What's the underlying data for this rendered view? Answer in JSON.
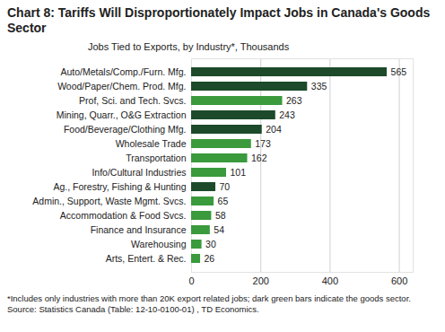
{
  "chart_data": {
    "type": "bar",
    "orientation": "horizontal",
    "title": "Chart 8: Tariffs Will Disproportionately Impact Jobs in Canada's Goods Sector",
    "subtitle": "Jobs Tied to Exports, by Industry*, Thousands",
    "footnote": "*Includes only industries with more than 20K export related jobs; dark green bars indicate the goods sector. Source: Statistics Canada (Table: 12-10-0100-01) , TD Economics.",
    "categories": [
      "Auto/Metals/Comp./Furn. Mfg.",
      "Wood/Paper/Chem. Prod. Mfg.",
      "Prof, Sci. and Tech. Svcs.",
      "Mining, Quarr., O&G Extraction",
      "Food/Beverage/Clothing Mfg.",
      "Wholesale Trade",
      "Transportation",
      "Info/Cultural Industries",
      "Ag., Forestry, Fishing & Hunting",
      "Admin., Support, Waste Mgmt. Svcs.",
      "Accommodation & Food Svcs.",
      "Finance and Insurance",
      "Warehousing",
      "Arts, Entert. & Rec."
    ],
    "values": [
      565,
      335,
      263,
      243,
      204,
      173,
      162,
      101,
      70,
      65,
      58,
      54,
      30,
      26
    ],
    "colors": [
      "#1c4a2a",
      "#1c4a2a",
      "#3a9a3c",
      "#1c4a2a",
      "#1c4a2a",
      "#3a9a3c",
      "#3a9a3c",
      "#3a9a3c",
      "#1c4a2a",
      "#3a9a3c",
      "#3a9a3c",
      "#3a9a3c",
      "#3a9a3c",
      "#3a9a3c"
    ],
    "xlim": [
      0,
      640
    ],
    "xticks": [
      0,
      200,
      400,
      600
    ],
    "grid": true,
    "data_labels": true
  }
}
